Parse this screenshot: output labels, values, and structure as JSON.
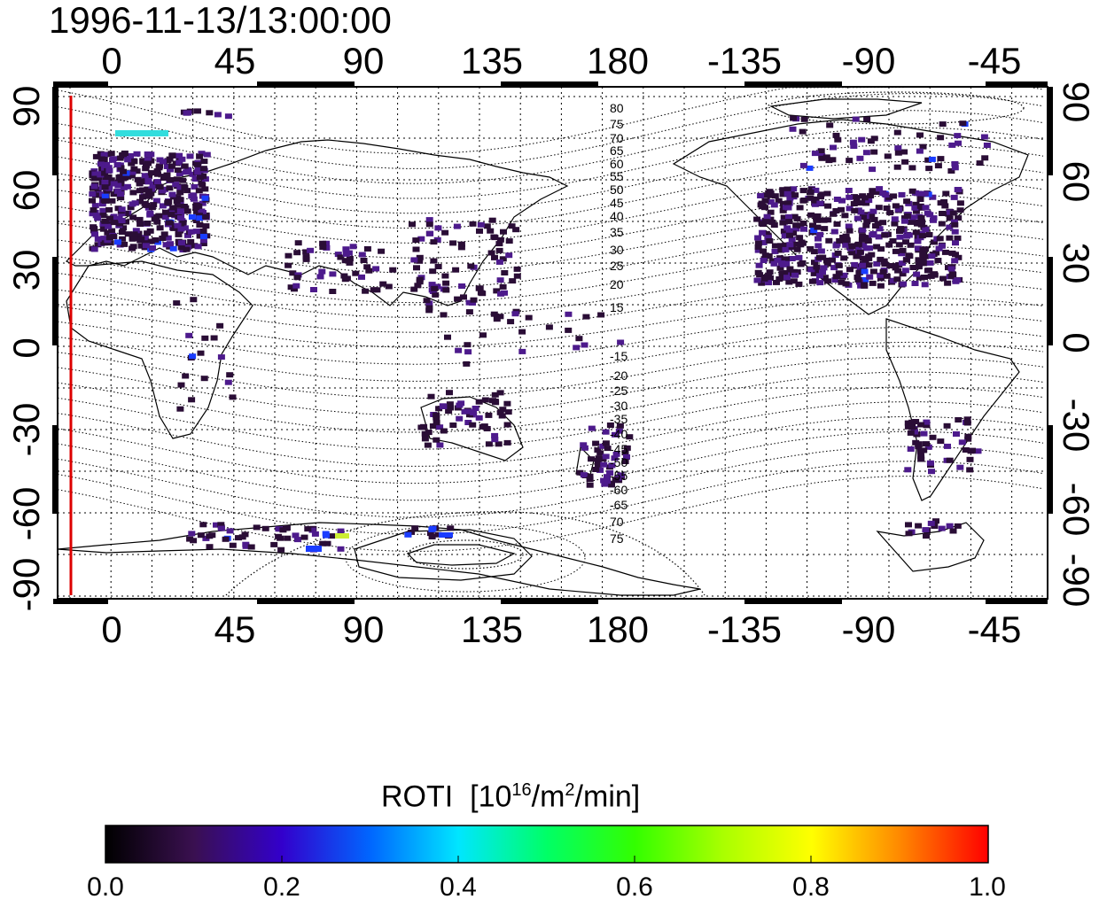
{
  "title": "1996-11-13/13:00:00",
  "colors": {
    "frame": "#000000",
    "terminator": "#dd0000",
    "grid": "#000000",
    "low": "#2a0d36",
    "mid": "#4d1a8c",
    "high": "#1a3cff"
  },
  "map": {
    "top_ticks": [
      "0",
      "45",
      "90",
      "135",
      "180",
      "-135",
      "-90",
      "-45"
    ],
    "bottom_ticks": [
      "0",
      "45",
      "90",
      "135",
      "180",
      "-135",
      "-90",
      "-45"
    ],
    "left_ticks": [
      "90",
      "60",
      "30",
      "0",
      "-30",
      "-60",
      "-90"
    ],
    "right_ticks": [
      "90",
      "60",
      "30",
      "0",
      "-30",
      "-60",
      "-90"
    ],
    "contour_labels_north": [
      "80",
      "75",
      "70",
      "65",
      "60",
      "55",
      "50",
      "45",
      "40",
      "35",
      "30",
      "25",
      "20",
      "15"
    ],
    "contour_labels_south": [
      "-15",
      "-20",
      "-25",
      "-30",
      "-35",
      "-40",
      "-45",
      "-50",
      "-55",
      "-60",
      "-65",
      "70",
      "75"
    ]
  },
  "colorbar": {
    "label": "ROTI",
    "unit_open": "[10",
    "unit_exp1": "16",
    "unit_mid": "/m",
    "unit_exp2": "2",
    "unit_close": "/min]",
    "ticks": [
      "0.0",
      "0.2",
      "0.4",
      "0.6",
      "0.8",
      "1.0"
    ],
    "min": 0.0,
    "max": 1.0
  }
}
